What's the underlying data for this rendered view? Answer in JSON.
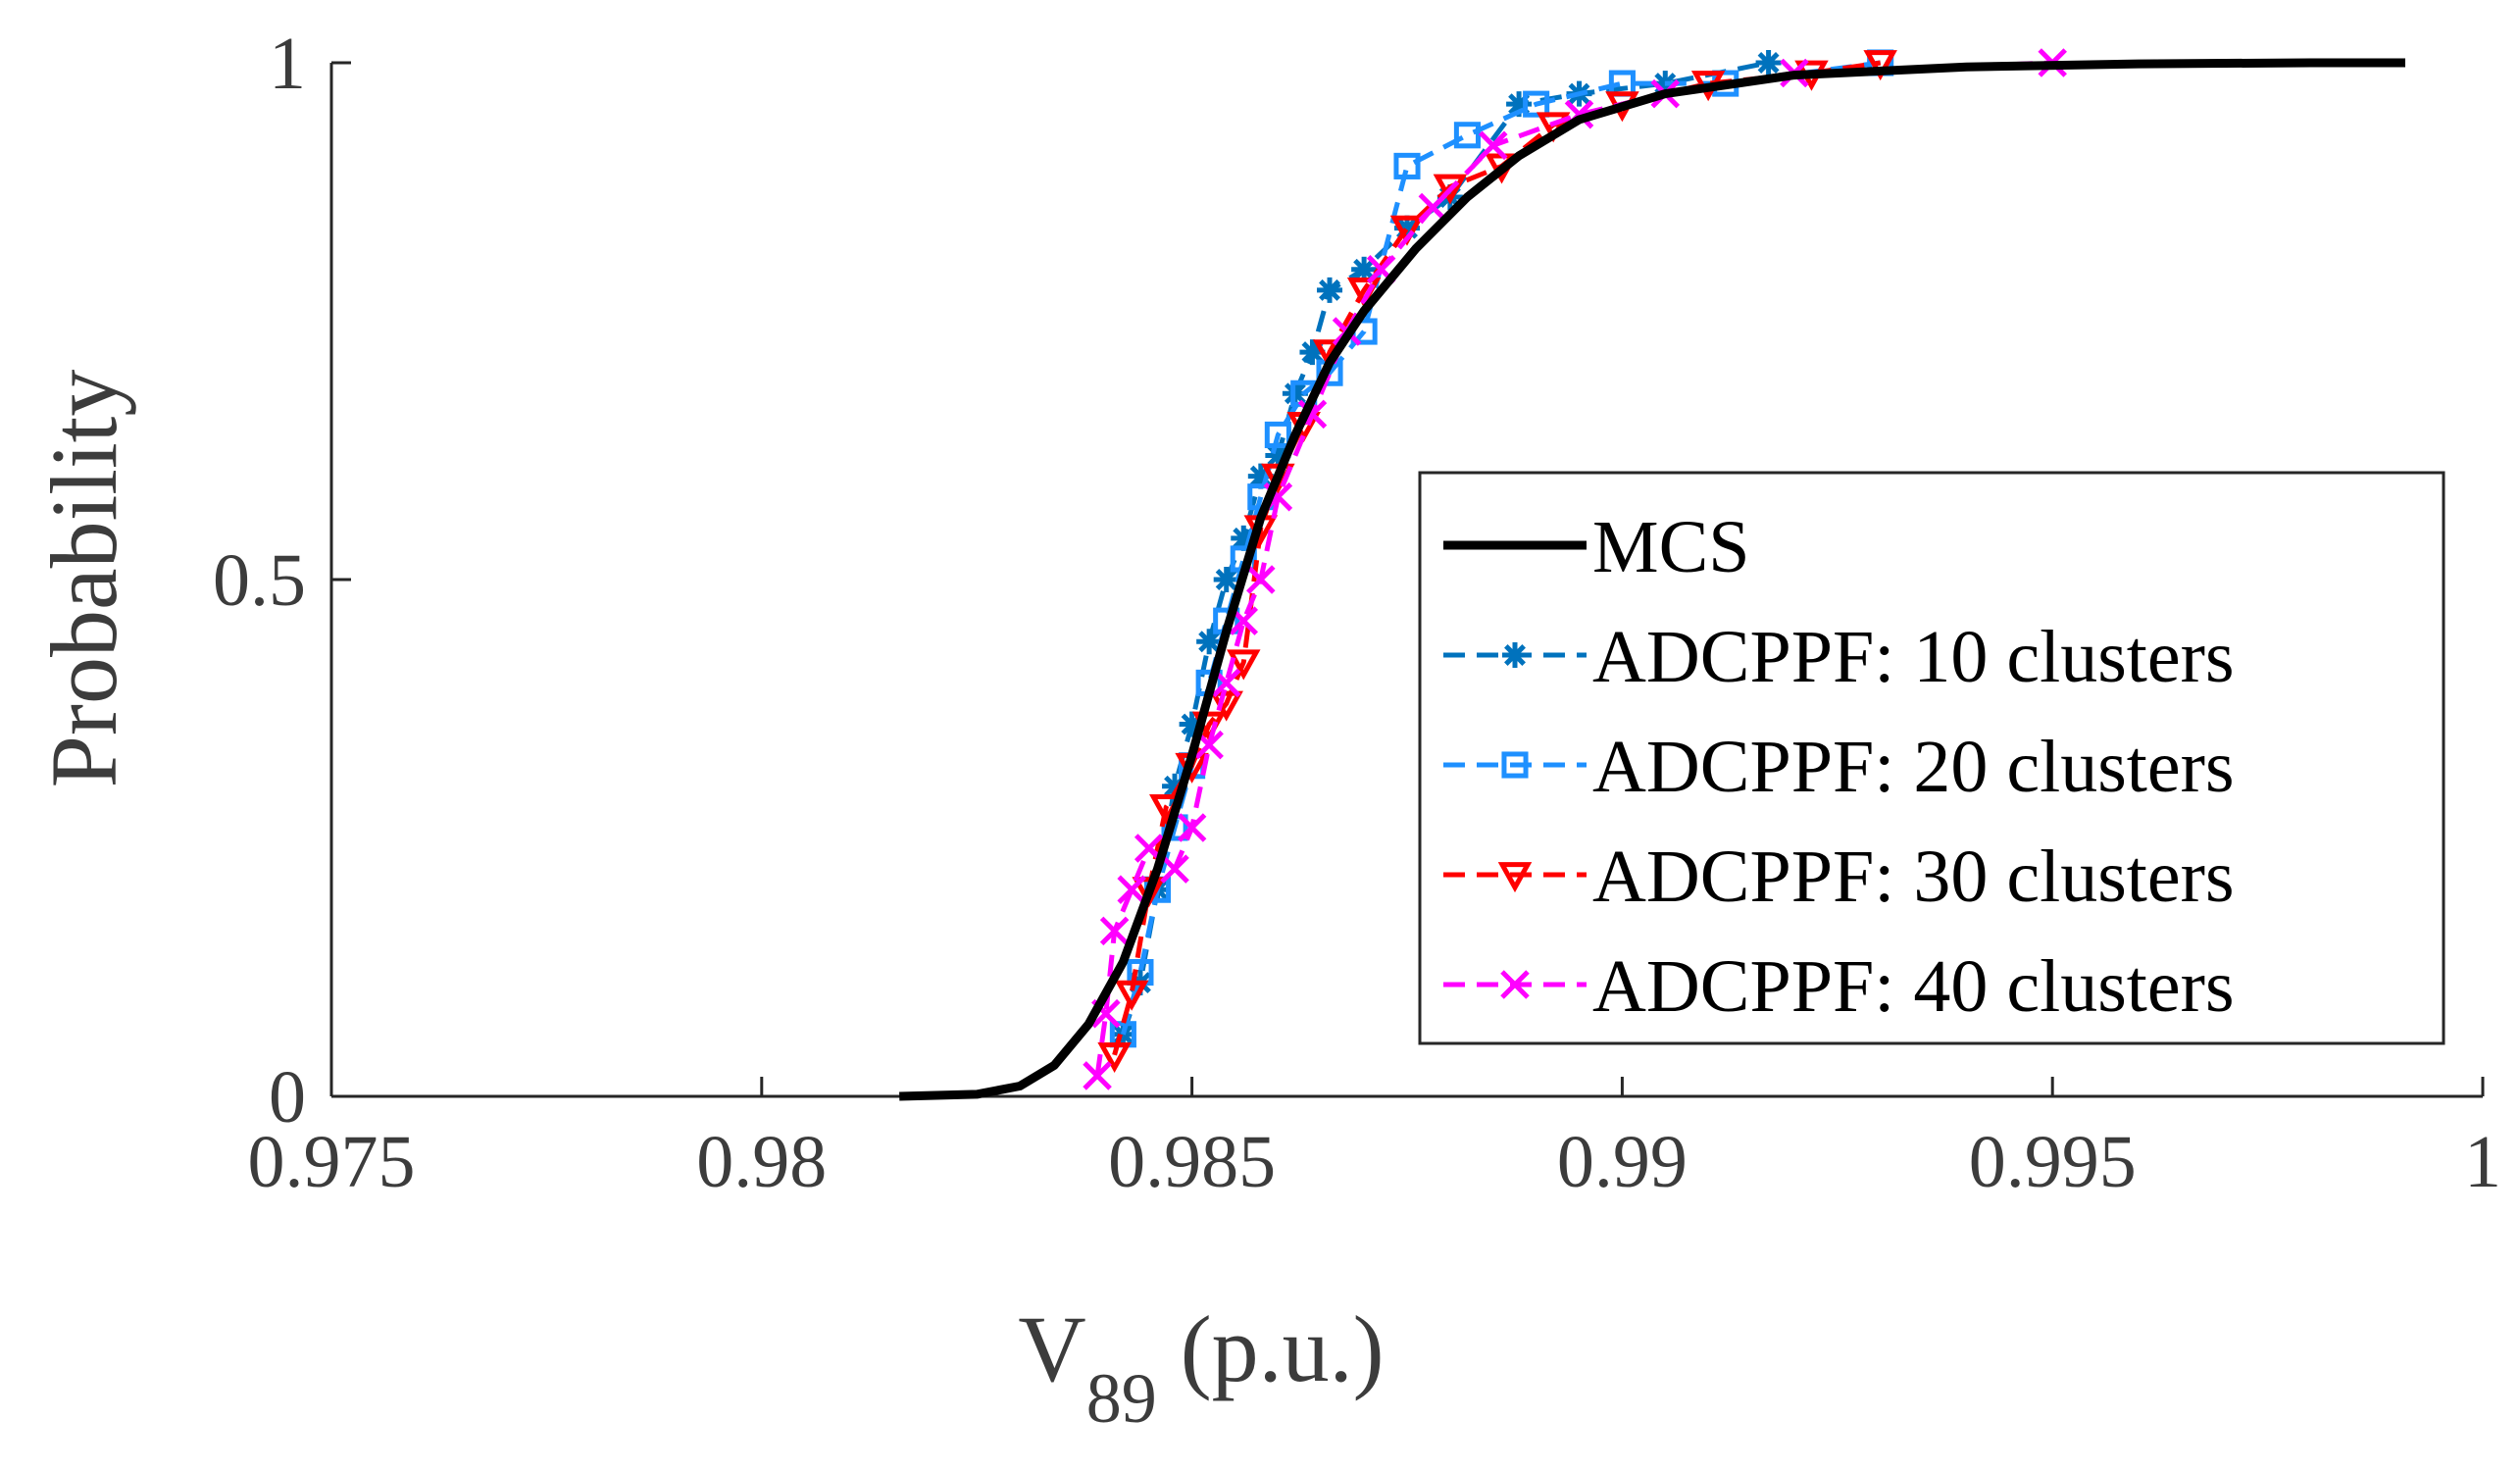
{
  "chart_data": {
    "type": "line",
    "title": "",
    "xlabel_main": "V",
    "xlabel_sub": "89",
    "xlabel_suffix": " (p.u.)",
    "ylabel": "Probability",
    "xlim": [
      0.975,
      1.0
    ],
    "ylim": [
      0,
      1
    ],
    "xticks": [
      0.975,
      0.98,
      0.985,
      0.99,
      0.995,
      1.0
    ],
    "xtick_labels": [
      "0.975",
      "0.98",
      "0.985",
      "0.99",
      "0.995",
      "1"
    ],
    "yticks": [
      0,
      0.5,
      1
    ],
    "ytick_labels": [
      "0",
      "0.5",
      "1"
    ],
    "legend_position": "lower-right",
    "series": [
      {
        "name": "MCS",
        "color": "#000000",
        "style": "solid",
        "marker": "none",
        "x": [
          0.9816,
          0.9825,
          0.983,
          0.9834,
          0.9838,
          0.9842,
          0.9846,
          0.985,
          0.9854,
          0.9858,
          0.9862,
          0.9866,
          0.987,
          0.9876,
          0.9882,
          0.9888,
          0.9895,
          0.9905,
          0.992,
          0.994,
          0.996,
          0.998,
          0.9991
        ],
        "y": [
          0.0,
          0.002,
          0.01,
          0.03,
          0.07,
          0.13,
          0.22,
          0.33,
          0.45,
          0.56,
          0.64,
          0.71,
          0.76,
          0.82,
          0.87,
          0.91,
          0.945,
          0.97,
          0.988,
          0.996,
          0.999,
          1.0,
          1.0
        ]
      },
      {
        "name": "ADCPPF: 10 clusters",
        "color": "#0072bd",
        "style": "dashed",
        "marker": "asterisk",
        "x": [
          0.9842,
          0.9844,
          0.9846,
          0.9848,
          0.985,
          0.9852,
          0.9854,
          0.9856,
          0.9858,
          0.986,
          0.9862,
          0.9864,
          0.9866,
          0.987,
          0.9875,
          0.988,
          0.9888,
          0.9895,
          0.9905,
          0.9917
        ],
        "y": [
          0.06,
          0.11,
          0.2,
          0.3,
          0.36,
          0.44,
          0.5,
          0.54,
          0.6,
          0.62,
          0.68,
          0.72,
          0.78,
          0.8,
          0.84,
          0.87,
          0.96,
          0.97,
          0.98,
          1.0
        ]
      },
      {
        "name": "ADCPPF: 20 clusters",
        "color": "#1e90ff",
        "style": "dashed",
        "marker": "square",
        "x": [
          0.9842,
          0.9844,
          0.9846,
          0.9848,
          0.985,
          0.9852,
          0.9854,
          0.9856,
          0.9858,
          0.986,
          0.9863,
          0.9866,
          0.987,
          0.9875,
          0.9882,
          0.989,
          0.99,
          0.9912,
          0.993
        ],
        "y": [
          0.06,
          0.12,
          0.2,
          0.26,
          0.32,
          0.4,
          0.46,
          0.52,
          0.58,
          0.64,
          0.68,
          0.7,
          0.74,
          0.9,
          0.93,
          0.96,
          0.98,
          0.98,
          1.0
        ]
      },
      {
        "name": "ADCPPF: 30 clusters",
        "color": "#ff0000",
        "style": "dashed",
        "marker": "triangle-down",
        "x": [
          0.9841,
          0.9843,
          0.9845,
          0.9847,
          0.985,
          0.9852,
          0.9854,
          0.9856,
          0.9858,
          0.986,
          0.9863,
          0.9866,
          0.987,
          0.9875,
          0.988,
          0.9886,
          0.9892,
          0.99,
          0.991,
          0.9922,
          0.993
        ],
        "y": [
          0.04,
          0.1,
          0.2,
          0.28,
          0.32,
          0.36,
          0.38,
          0.42,
          0.55,
          0.6,
          0.65,
          0.72,
          0.78,
          0.84,
          0.88,
          0.9,
          0.94,
          0.96,
          0.98,
          0.99,
          1.0
        ]
      },
      {
        "name": "ADCPPF: 40 clusters",
        "color": "#ff00ff",
        "style": "dashed",
        "marker": "x",
        "x": [
          0.9839,
          0.984,
          0.9841,
          0.9843,
          0.9845,
          0.9848,
          0.985,
          0.9852,
          0.9854,
          0.9856,
          0.9858,
          0.986,
          0.9864,
          0.9868,
          0.9872,
          0.9878,
          0.9885,
          0.9895,
          0.9905,
          0.992,
          0.995
        ],
        "y": [
          0.02,
          0.08,
          0.16,
          0.2,
          0.24,
          0.22,
          0.26,
          0.34,
          0.4,
          0.46,
          0.5,
          0.58,
          0.66,
          0.74,
          0.8,
          0.86,
          0.92,
          0.95,
          0.97,
          0.99,
          1.0
        ]
      }
    ]
  }
}
